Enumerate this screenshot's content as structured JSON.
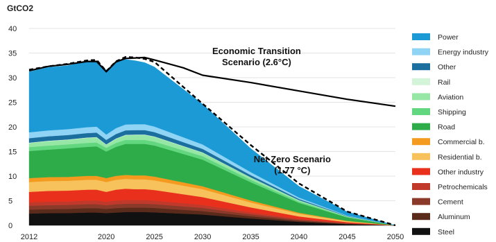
{
  "chart_data": {
    "type": "area",
    "ylabel": "GtCO2",
    "ylim": [
      0,
      40
    ],
    "yticks": [
      0,
      5,
      10,
      15,
      20,
      25,
      30,
      35,
      40
    ],
    "xlim": [
      2012,
      2050
    ],
    "xticks": [
      2012,
      2020,
      2025,
      2030,
      2035,
      2040,
      2045,
      2050
    ],
    "grid": true,
    "legend_position": "right",
    "x": [
      2012,
      2014,
      2016,
      2018,
      2019,
      2020,
      2021,
      2022,
      2023,
      2024,
      2025,
      2030,
      2035,
      2040,
      2045,
      2050
    ],
    "series": [
      {
        "name": "Steel",
        "color": "#111111",
        "values": [
          2.4,
          2.5,
          2.5,
          2.6,
          2.6,
          2.5,
          2.6,
          2.7,
          2.7,
          2.7,
          2.65,
          2.2,
          1.4,
          0.7,
          0.25,
          0
        ]
      },
      {
        "name": "Aluminum",
        "color": "#5a2a1a",
        "values": [
          0.8,
          0.8,
          0.85,
          0.9,
          0.9,
          0.85,
          0.9,
          0.9,
          0.9,
          0.9,
          0.88,
          0.7,
          0.45,
          0.22,
          0.08,
          0
        ]
      },
      {
        "name": "Cement",
        "color": "#8b3a2a",
        "values": [
          0.8,
          0.8,
          0.8,
          0.8,
          0.8,
          0.75,
          0.8,
          0.8,
          0.8,
          0.8,
          0.78,
          0.65,
          0.4,
          0.2,
          0.07,
          0
        ]
      },
      {
        "name": "Petrochemicals",
        "color": "#c0392b",
        "values": [
          0.7,
          0.7,
          0.7,
          0.75,
          0.75,
          0.7,
          0.75,
          0.75,
          0.75,
          0.75,
          0.73,
          0.6,
          0.4,
          0.2,
          0.07,
          0
        ]
      },
      {
        "name": "Other industry",
        "color": "#e8301c",
        "values": [
          2.1,
          2.2,
          2.2,
          2.2,
          2.2,
          2.0,
          2.2,
          2.3,
          2.2,
          2.2,
          2.15,
          1.6,
          1.0,
          0.5,
          0.18,
          0
        ]
      },
      {
        "name": "Residential b.",
        "color": "#f7c15c",
        "values": [
          2.0,
          2.0,
          2.0,
          2.0,
          2.0,
          2.0,
          2.0,
          2.0,
          2.0,
          2.0,
          1.95,
          1.6,
          1.0,
          0.55,
          0.2,
          0
        ]
      },
      {
        "name": "Commercial b.",
        "color": "#f39a1f",
        "values": [
          0.8,
          0.8,
          0.8,
          0.8,
          0.8,
          0.8,
          0.8,
          0.8,
          0.8,
          0.8,
          0.78,
          0.6,
          0.4,
          0.2,
          0.07,
          0
        ]
      },
      {
        "name": "Road",
        "color": "#2eac4a",
        "values": [
          5.5,
          5.6,
          5.8,
          5.9,
          6.0,
          5.4,
          5.9,
          6.3,
          6.4,
          6.4,
          6.3,
          5.4,
          3.7,
          2.0,
          0.7,
          0
        ]
      },
      {
        "name": "Shipping",
        "color": "#63d77f",
        "values": [
          0.8,
          0.8,
          0.8,
          0.8,
          0.8,
          0.75,
          0.8,
          0.8,
          0.8,
          0.8,
          0.8,
          0.7,
          0.5,
          0.28,
          0.1,
          0
        ]
      },
      {
        "name": "Aviation",
        "color": "#96e6a6",
        "values": [
          0.8,
          0.9,
          0.9,
          1.0,
          1.0,
          0.6,
          0.8,
          0.95,
          1.0,
          1.0,
          0.95,
          0.7,
          0.45,
          0.25,
          0.1,
          0
        ]
      },
      {
        "name": "Rail",
        "color": "#d3f4d9",
        "values": [
          0.1,
          0.1,
          0.1,
          0.1,
          0.1,
          0.1,
          0.1,
          0.1,
          0.1,
          0.1,
          0.1,
          0.08,
          0.05,
          0.03,
          0.01,
          0
        ]
      },
      {
        "name": "Other",
        "color": "#1a6f9e",
        "values": [
          0.9,
          0.9,
          0.9,
          0.9,
          0.9,
          0.9,
          0.9,
          0.9,
          0.9,
          0.9,
          0.87,
          0.7,
          0.45,
          0.22,
          0.08,
          0
        ]
      },
      {
        "name": "Energy industry",
        "color": "#8fd3f5",
        "values": [
          1.2,
          1.2,
          1.2,
          1.2,
          1.2,
          1.1,
          1.2,
          1.2,
          1.2,
          1.2,
          1.15,
          0.9,
          0.6,
          0.3,
          0.1,
          0
        ]
      },
      {
        "name": "Power",
        "color": "#1b9ad6",
        "values": [
          12.3,
          12.8,
          12.9,
          13.3,
          13.4,
          13.1,
          13.5,
          13.2,
          12.9,
          12.5,
          12.1,
          8.2,
          4.8,
          2.3,
          0.75,
          0
        ]
      }
    ],
    "lines": [
      {
        "name": "Economic Transition Scenario (2.6°C)",
        "style": "solid",
        "color": "#000000",
        "x": [
          2012,
          2014,
          2016,
          2018,
          2019,
          2020,
          2021,
          2022,
          2023,
          2024,
          2025,
          2028,
          2030,
          2035,
          2040,
          2045,
          2050
        ],
        "values": [
          31.4,
          32.3,
          32.7,
          33.3,
          33.3,
          31.2,
          33.2,
          33.9,
          34.0,
          34.1,
          33.6,
          32.0,
          30.5,
          29.0,
          27.3,
          25.6,
          24.2
        ]
      },
      {
        "name": "Net Zero Scenario (1.77 °C)",
        "style": "dashed",
        "color": "#000000",
        "x": [
          2012,
          2014,
          2016,
          2018,
          2019,
          2020,
          2021,
          2022,
          2023,
          2024,
          2025,
          2030,
          2035,
          2040,
          2045,
          2050
        ],
        "values": [
          31.6,
          32.3,
          32.8,
          33.5,
          33.6,
          31.3,
          33.3,
          34.2,
          34.1,
          33.8,
          33.2,
          24.7,
          16.3,
          8.5,
          2.8,
          0
        ]
      }
    ],
    "annotations": [
      {
        "lines": [
          "Economic Transition",
          "Scenario (2.6°C)"
        ],
        "x": 2035.6,
        "y": 34.8
      },
      {
        "lines": [
          "Net Zero Scenario",
          "(1.77 °C)"
        ],
        "x": 2039.3,
        "y": 12.8
      }
    ],
    "legend_order": [
      "Power",
      "Energy industry",
      "Other",
      "Rail",
      "Aviation",
      "Shipping",
      "Road",
      "Commercial b.",
      "Residential b.",
      "Other industry",
      "Petrochemicals",
      "Cement",
      "Aluminum",
      "Steel"
    ]
  }
}
